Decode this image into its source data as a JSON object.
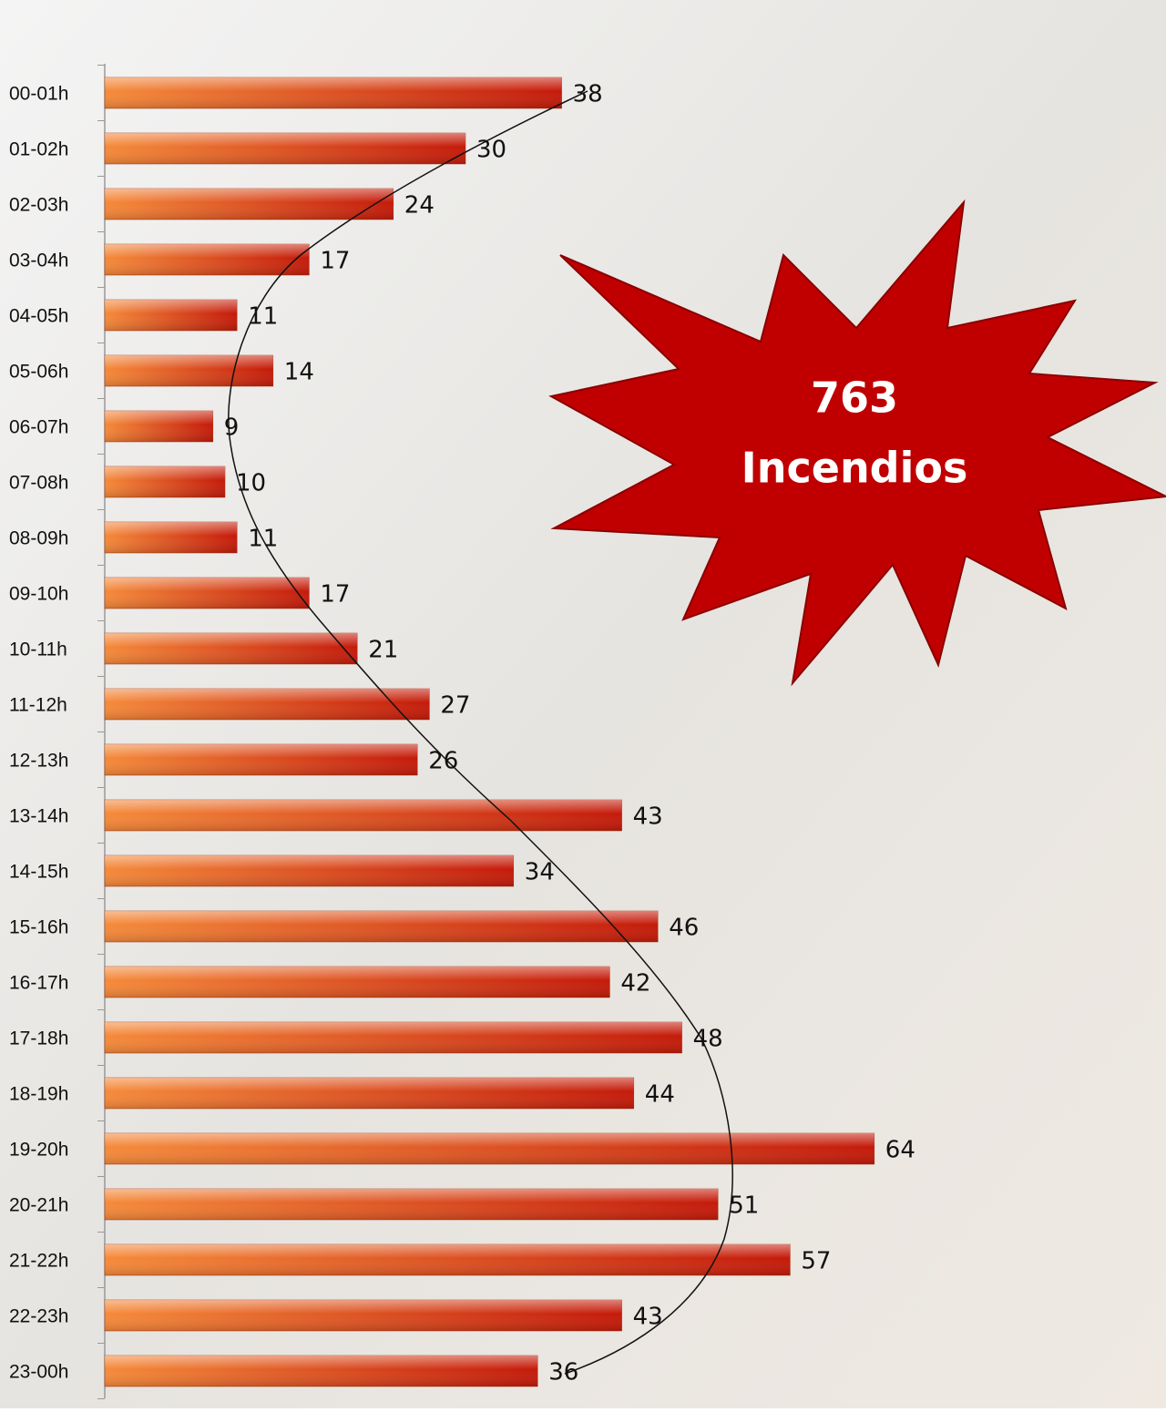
{
  "chart_data": {
    "type": "bar",
    "orientation": "horizontal",
    "categories": [
      "00-01h",
      "01-02h",
      "02-03h",
      "03-04h",
      "04-05h",
      "05-06h",
      "06-07h",
      "07-08h",
      "08-09h",
      "09-10h",
      "10-11h",
      "11-12h",
      "12-13h",
      "13-14h",
      "14-15h",
      "15-16h",
      "16-17h",
      "17-18h",
      "18-19h",
      "19-20h",
      "20-21h",
      "21-22h",
      "22-23h",
      "23-00h"
    ],
    "values": [
      38,
      30,
      24,
      17,
      11,
      14,
      9,
      10,
      11,
      17,
      21,
      27,
      26,
      43,
      34,
      46,
      42,
      48,
      44,
      64,
      51,
      57,
      43,
      36
    ],
    "color": "#d9400f",
    "annotation": [
      "763",
      "Incendios"
    ],
    "annotation_color": "#c00000"
  }
}
